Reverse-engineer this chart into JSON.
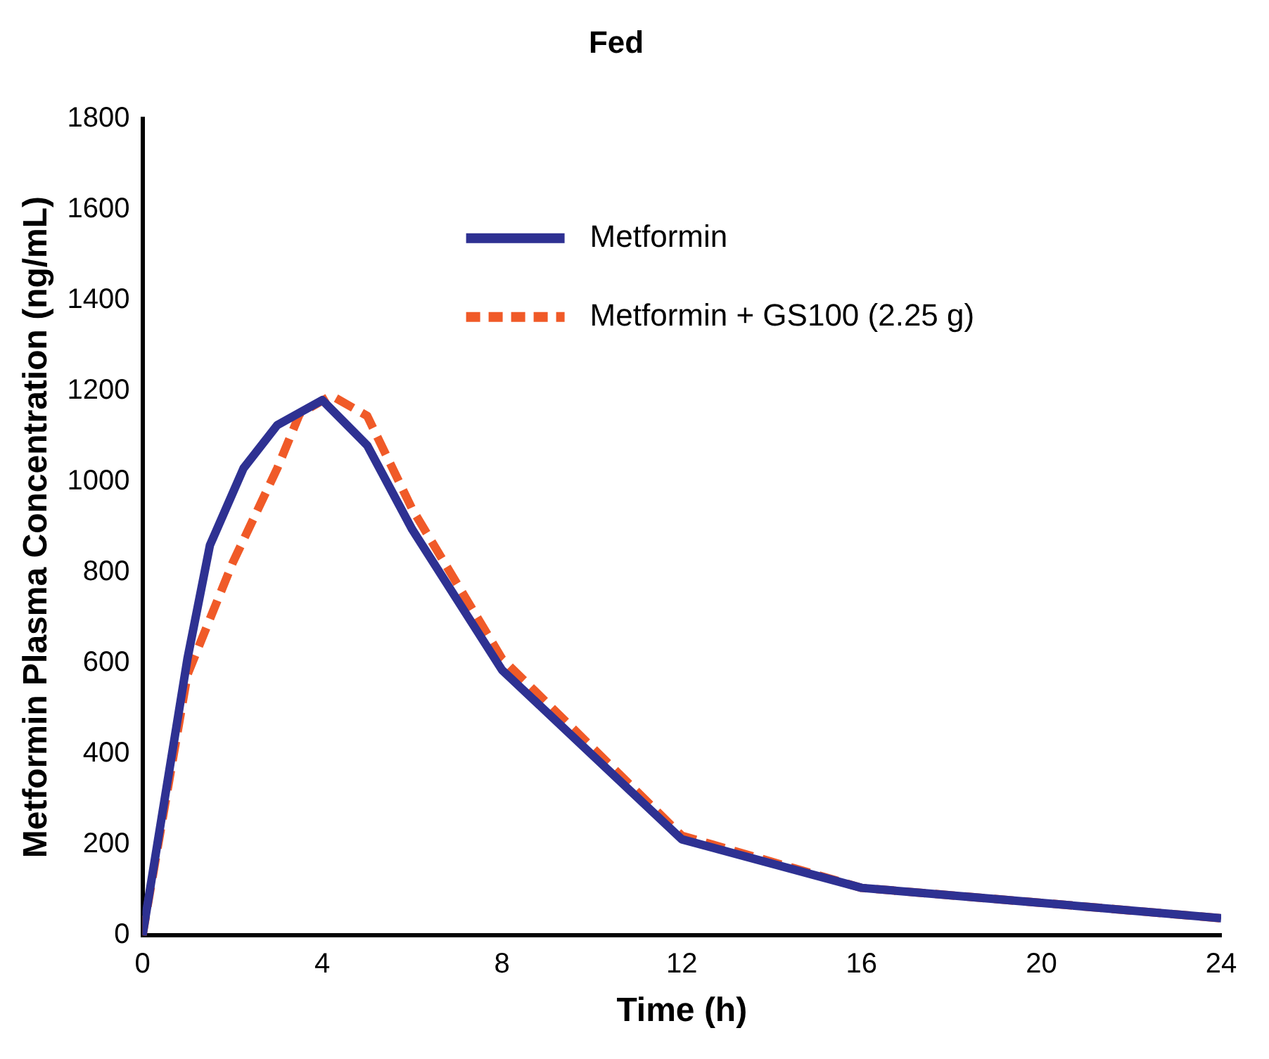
{
  "chart_data": {
    "type": "line",
    "title": "Fed",
    "xlabel": "Time (h)",
    "ylabel": "Metformin Plasma Concentration (ng/mL)",
    "xlim": [
      0,
      24
    ],
    "xticks": [
      0,
      4,
      8,
      12,
      16,
      20,
      24
    ],
    "ylim": [
      0,
      1800
    ],
    "yticks": [
      0,
      200,
      400,
      600,
      800,
      1000,
      1200,
      1400,
      1600,
      1800
    ],
    "grid": false,
    "legend": "top right",
    "marker": "none",
    "series": [
      {
        "name": "Metformin",
        "color": "#2e3192",
        "line_style": "solid",
        "x": [
          0,
          1,
          1.5,
          2.25,
          3,
          4,
          5,
          6,
          8,
          12,
          16,
          20,
          24
        ],
        "values": [
          0,
          610,
          860,
          1030,
          1125,
          1180,
          1080,
          895,
          585,
          212,
          105,
          72,
          38
        ]
      },
      {
        "name": "Metformin + GS100 (2.25 g)",
        "color": "#f05a28",
        "line_style": "dashed",
        "x": [
          0,
          1,
          2,
          3,
          3.5,
          4.2,
          5,
          6,
          8,
          12,
          16,
          20,
          24
        ],
        "values": [
          0,
          575,
          820,
          1030,
          1150,
          1190,
          1145,
          940,
          610,
          220,
          105,
          72,
          38
        ]
      }
    ]
  }
}
